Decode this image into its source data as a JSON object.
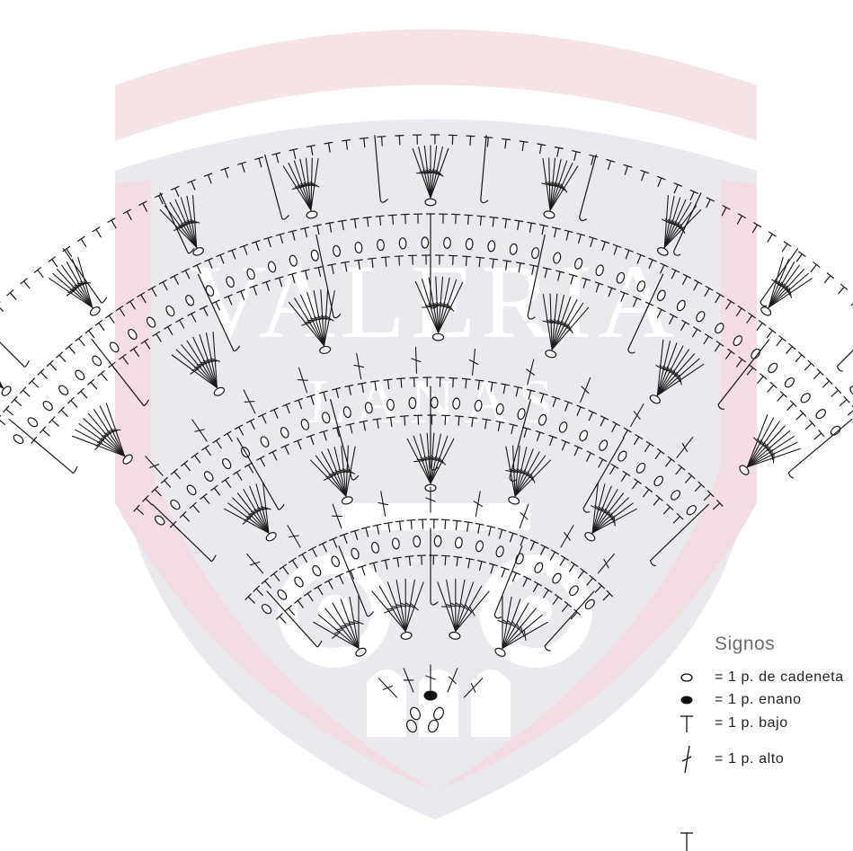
{
  "watermark": {
    "brand": "VALERIA",
    "sub": "LANAS",
    "shield_color": "#e9e9ef",
    "band_color": "#f6e3e6",
    "mark_color": "#ffffff"
  },
  "chart_colors": {
    "stroke": "#1a1a1a",
    "bg": "#ffffff"
  },
  "legend": {
    "title": "Signos",
    "items": [
      {
        "symbol": "chain-icon",
        "label": "= 1 p. de cadeneta"
      },
      {
        "symbol": "slip-stitch-icon",
        "label": "= 1 p. enano"
      },
      {
        "symbol": "single-crochet-icon",
        "label": "= 1 p. bajo"
      },
      {
        "symbol": "double-crochet-icon",
        "label": "= 1 p. alto"
      },
      {
        "symbol": "long-stitch-icon",
        "label": ""
      }
    ]
  }
}
